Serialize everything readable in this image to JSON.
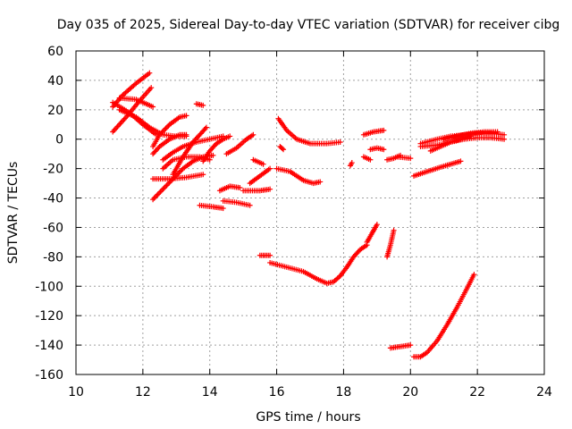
{
  "chart_data": {
    "type": "scatter",
    "title": "Day 035 of 2025, Sidereal Day-to-day VTEC variation (SDTVAR) for receiver cibg",
    "xlabel": "GPS time / hours",
    "ylabel": "SDTVAR / TECUs",
    "xlim": [
      10,
      24
    ],
    "ylim": [
      -160,
      60
    ],
    "xticks": [
      "10",
      "12",
      "14",
      "16",
      "18",
      "20",
      "22",
      "24"
    ],
    "yticks": [
      "60",
      "40",
      "20",
      "0",
      "-20",
      "-40",
      "-60",
      "-80",
      "-100",
      "-120",
      "-140",
      "-160"
    ],
    "grid": true,
    "marker": "plus",
    "color": "#ff0000",
    "series": [
      {
        "values": [],
        "segments": [
          [
            [
              11.1,
              22
            ],
            [
              11.4,
              30
            ],
            [
              11.8,
              38
            ],
            [
              12.2,
              45
            ]
          ],
          [
            [
              11.1,
              5
            ],
            [
              11.5,
              15
            ],
            [
              11.9,
              26
            ],
            [
              12.25,
              35
            ]
          ],
          [
            [
              11.3,
              28
            ],
            [
              11.8,
              27
            ],
            [
              12.3,
              22
            ]
          ],
          [
            [
              11.3,
              20
            ],
            [
              11.8,
              15
            ],
            [
              12.2,
              8
            ],
            [
              12.6,
              3
            ],
            [
              13.0,
              2
            ],
            [
              13.3,
              2
            ]
          ],
          [
            [
              11.1,
              25
            ],
            [
              11.6,
              18
            ],
            [
              12.0,
              10
            ],
            [
              12.4,
              3
            ]
          ],
          [
            [
              12.3,
              -5
            ],
            [
              12.5,
              3
            ],
            [
              12.8,
              10
            ],
            [
              13.1,
              15
            ],
            [
              13.3,
              16
            ]
          ],
          [
            [
              12.3,
              -10
            ],
            [
              12.5,
              -5
            ],
            [
              12.8,
              0
            ],
            [
              13.1,
              3
            ],
            [
              13.3,
              3
            ]
          ],
          [
            [
              12.3,
              -27
            ],
            [
              12.8,
              -27
            ],
            [
              13.3,
              -26
            ],
            [
              13.8,
              -24
            ]
          ],
          [
            [
              12.3,
              -41
            ],
            [
              12.6,
              -34
            ],
            [
              12.9,
              -27
            ],
            [
              13.2,
              -20
            ],
            [
              13.5,
              -15
            ],
            [
              13.8,
              -12
            ],
            [
              14.1,
              -11
            ]
          ],
          [
            [
              12.6,
              -20
            ],
            [
              12.9,
              -14
            ],
            [
              13.3,
              -12
            ],
            [
              13.7,
              -12
            ],
            [
              14.0,
              -14
            ]
          ],
          [
            [
              12.6,
              -14
            ],
            [
              12.9,
              -9
            ],
            [
              13.2,
              -5
            ],
            [
              13.6,
              -2
            ],
            [
              14.0,
              0
            ],
            [
              14.4,
              2
            ]
          ],
          [
            [
              12.9,
              -24
            ],
            [
              13.2,
              -12
            ],
            [
              13.5,
              -2
            ],
            [
              13.7,
              3
            ],
            [
              13.9,
              8
            ]
          ],
          [
            [
              13.6,
              24
            ],
            [
              13.8,
              23
            ]
          ],
          [
            [
              13.8,
              -15
            ],
            [
              14.0,
              -8
            ],
            [
              14.2,
              -3
            ],
            [
              14.4,
              0
            ],
            [
              14.6,
              2
            ]
          ],
          [
            [
              13.7,
              -45
            ],
            [
              14.1,
              -46
            ],
            [
              14.4,
              -47
            ]
          ],
          [
            [
              14.3,
              -35
            ],
            [
              14.6,
              -32
            ],
            [
              14.9,
              -33
            ]
          ],
          [
            [
              14.4,
              -42
            ],
            [
              14.8,
              -43
            ],
            [
              15.2,
              -45
            ]
          ],
          [
            [
              14.5,
              -10
            ],
            [
              14.8,
              -6
            ],
            [
              15.1,
              0
            ],
            [
              15.3,
              3
            ]
          ],
          [
            [
              15.0,
              -35
            ],
            [
              15.5,
              -35
            ],
            [
              15.8,
              -34
            ]
          ],
          [
            [
              15.2,
              -30
            ],
            [
              15.5,
              -25
            ],
            [
              15.8,
              -20
            ]
          ],
          [
            [
              15.3,
              -14
            ],
            [
              15.6,
              -17
            ]
          ],
          [
            [
              15.5,
              -79
            ],
            [
              15.8,
              -79
            ]
          ],
          [
            [
              15.8,
              -84
            ],
            [
              16.3,
              -87
            ],
            [
              16.8,
              -90
            ],
            [
              17.2,
              -95
            ],
            [
              17.5,
              -98
            ],
            [
              17.7,
              -97
            ],
            [
              17.9,
              -93
            ],
            [
              18.1,
              -87
            ],
            [
              18.3,
              -80
            ],
            [
              18.5,
              -75
            ],
            [
              18.7,
              -72
            ]
          ],
          [
            [
              18.7,
              -70
            ],
            [
              18.85,
              -64
            ],
            [
              19.0,
              -58
            ]
          ],
          [
            [
              16.0,
              -20
            ],
            [
              16.4,
              -22
            ],
            [
              16.8,
              -28
            ],
            [
              17.1,
              -30
            ],
            [
              17.3,
              -29
            ]
          ],
          [
            [
              16.05,
              14
            ],
            [
              16.3,
              6
            ],
            [
              16.6,
              0
            ],
            [
              17.0,
              -3
            ],
            [
              17.5,
              -3
            ],
            [
              17.9,
              -2
            ]
          ],
          [
            [
              16.1,
              -5
            ],
            [
              16.2,
              -7
            ]
          ],
          [
            [
              18.2,
              -18
            ],
            [
              18.25,
              -16
            ]
          ],
          [
            [
              18.6,
              -12
            ],
            [
              18.8,
              -14
            ]
          ],
          [
            [
              18.6,
              3
            ],
            [
              18.9,
              5
            ],
            [
              19.2,
              6
            ]
          ],
          [
            [
              18.8,
              -7
            ],
            [
              19.0,
              -6
            ],
            [
              19.2,
              -7
            ]
          ],
          [
            [
              19.3,
              -80
            ],
            [
              19.4,
              -72
            ],
            [
              19.5,
              -62
            ]
          ],
          [
            [
              19.3,
              -14
            ],
            [
              19.5,
              -13
            ],
            [
              19.7,
              -11
            ]
          ],
          [
            [
              19.4,
              -142
            ],
            [
              19.7,
              -141
            ],
            [
              20.0,
              -140
            ]
          ],
          [
            [
              19.6,
              -12
            ],
            [
              20.0,
              -13
            ]
          ],
          [
            [
              20.1,
              -148
            ],
            [
              20.3,
              -148
            ],
            [
              20.5,
              -145
            ],
            [
              20.8,
              -137
            ],
            [
              21.1,
              -126
            ],
            [
              21.4,
              -114
            ],
            [
              21.7,
              -101
            ],
            [
              21.9,
              -92
            ]
          ],
          [
            [
              20.1,
              -25
            ],
            [
              20.5,
              -22
            ],
            [
              20.9,
              -19
            ],
            [
              21.2,
              -17
            ],
            [
              21.5,
              -15
            ]
          ],
          [
            [
              20.3,
              -3
            ],
            [
              20.8,
              0
            ],
            [
              21.2,
              2
            ],
            [
              21.6,
              3
            ],
            [
              22.0,
              4
            ],
            [
              22.4,
              4
            ],
            [
              22.8,
              3
            ]
          ],
          [
            [
              20.3,
              -5
            ],
            [
              20.8,
              -4
            ],
            [
              21.2,
              -2
            ],
            [
              21.6,
              0
            ],
            [
              22.0,
              1
            ],
            [
              22.4,
              1
            ],
            [
              22.8,
              0
            ]
          ],
          [
            [
              20.6,
              -8
            ],
            [
              20.9,
              -5
            ],
            [
              21.2,
              -2
            ],
            [
              21.5,
              0
            ],
            [
              21.8,
              2
            ]
          ],
          [
            [
              21.0,
              0
            ],
            [
              21.4,
              2
            ],
            [
              21.8,
              4
            ],
            [
              22.2,
              5
            ],
            [
              22.6,
              5
            ]
          ]
        ]
      }
    ]
  }
}
